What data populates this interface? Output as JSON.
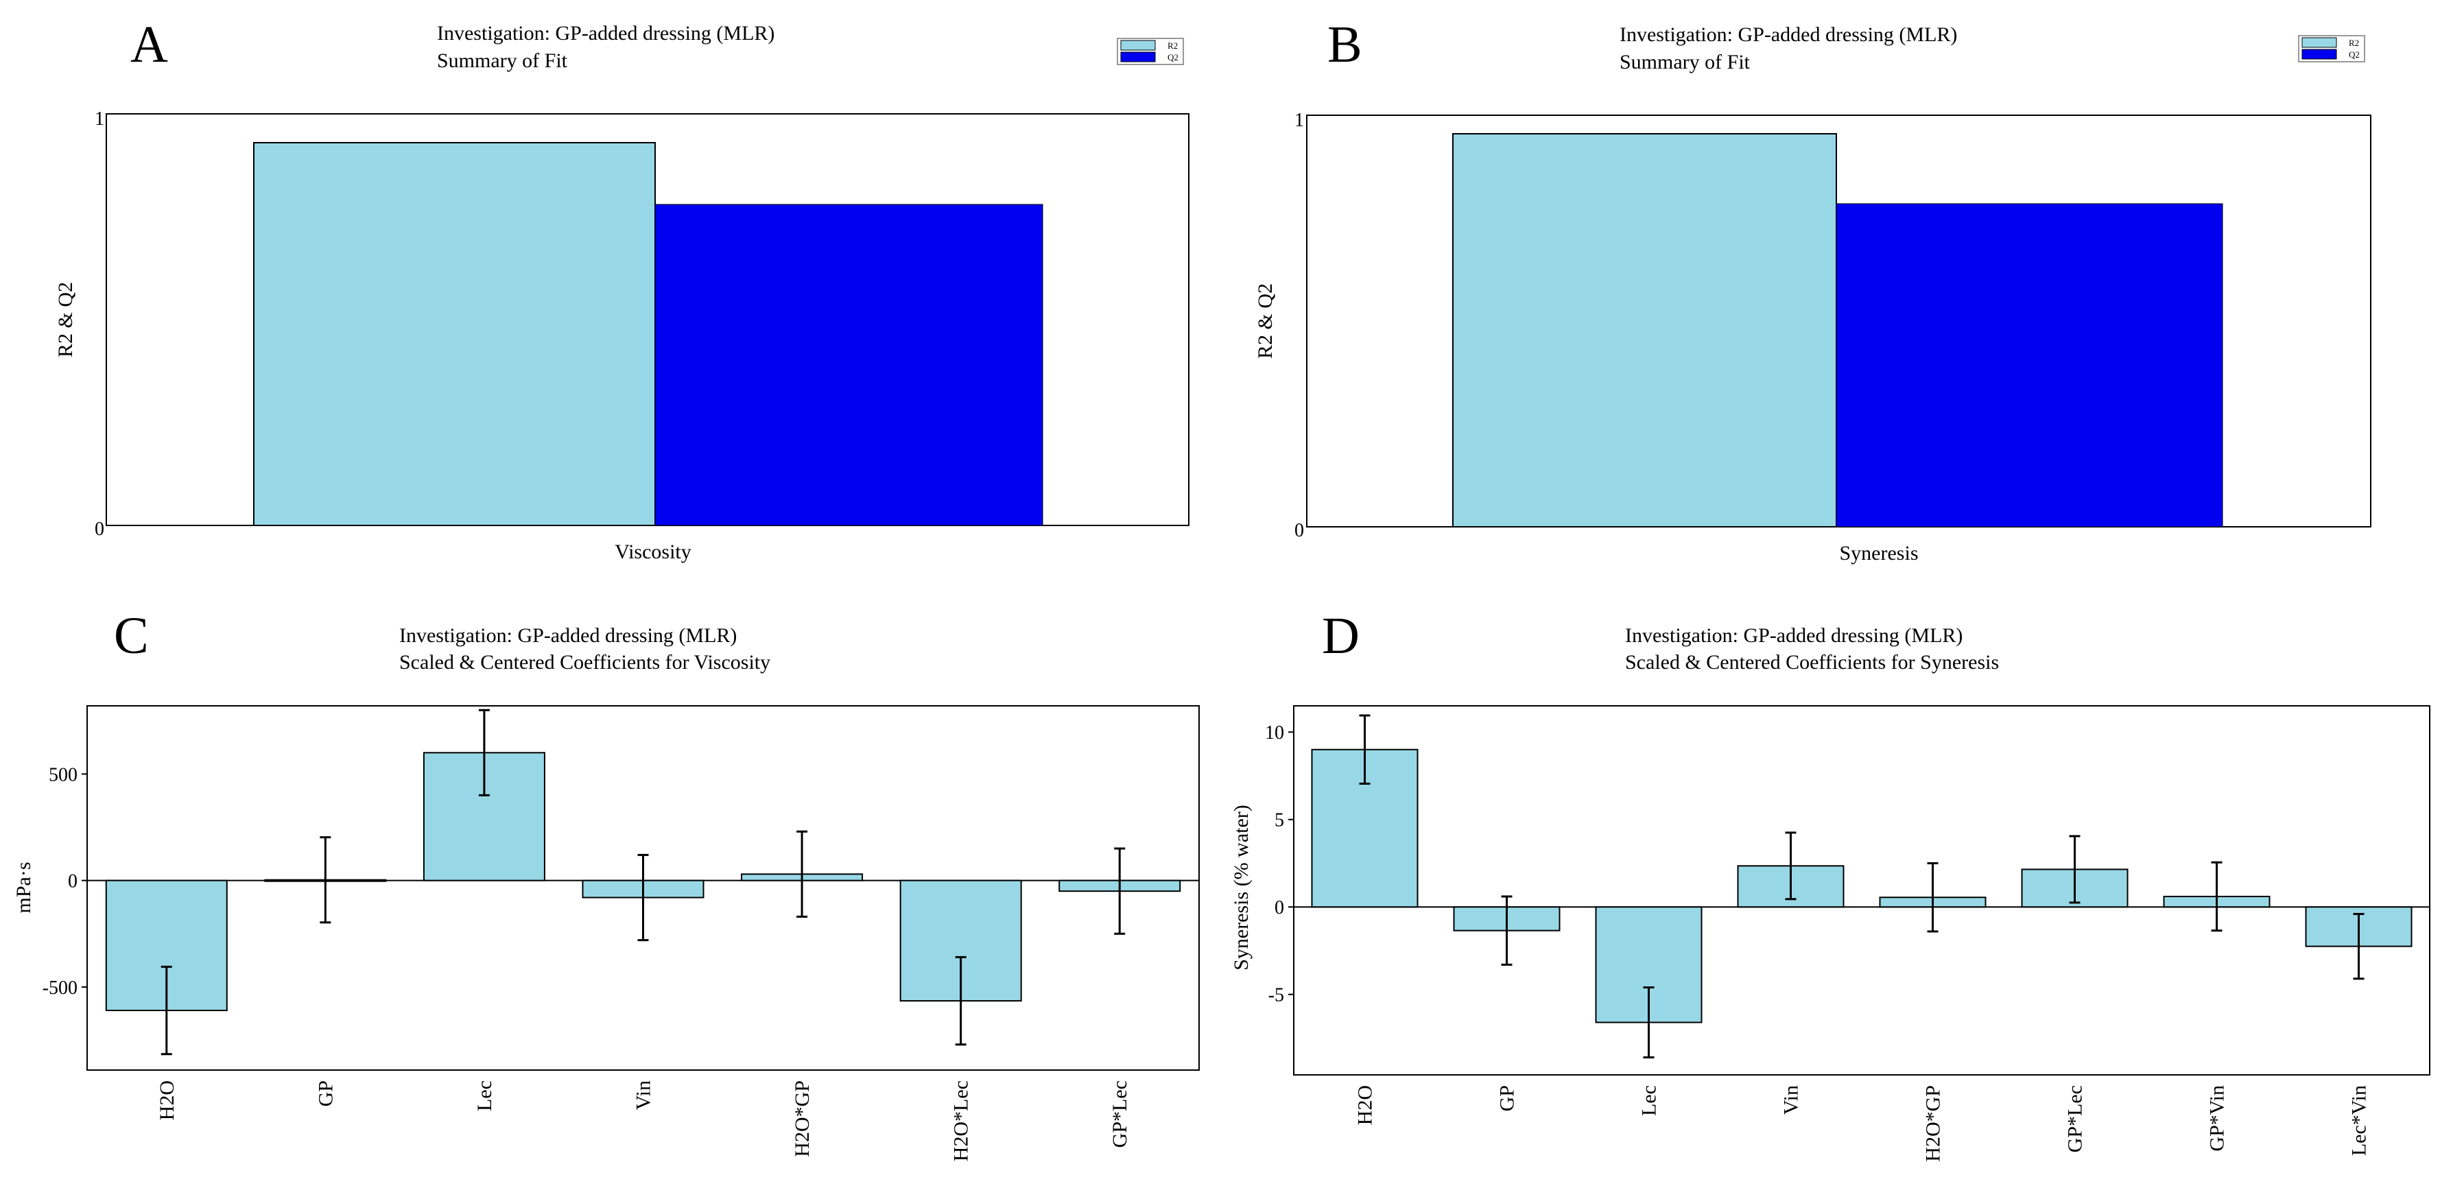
{
  "colors": {
    "r2": "#98d8e6",
    "q2": "#0000f0",
    "coef": "#98d8e6",
    "outline": "#000000"
  },
  "panels": [
    {
      "letter": "A",
      "title_line1": "Investigation: GP-added dressing (MLR)",
      "title_line2": "Summary of Fit"
    },
    {
      "letter": "B",
      "title_line1": "Investigation: GP-added dressing (MLR)",
      "title_line2": "Summary of Fit"
    },
    {
      "letter": "C",
      "title_line1": "Investigation: GP-added dressing (MLR)",
      "title_line2": "Scaled & Centered Coefficients for Viscosity"
    },
    {
      "letter": "D",
      "title_line1": "Investigation: GP-added dressing (MLR)",
      "title_line2": "Scaled & Centered Coefficients for Syneresis"
    }
  ],
  "chart_data": [
    {
      "type": "bar",
      "panel": "A",
      "title": "Summary of Fit",
      "xlabel": "Viscosity",
      "ylabel": "R2 & Q2",
      "ylim": [
        0,
        1
      ],
      "yticks": [
        0,
        1
      ],
      "categories": [
        "Viscosity"
      ],
      "series": [
        {
          "name": "R2",
          "values": [
            0.93
          ]
        },
        {
          "name": "Q2",
          "values": [
            0.78
          ]
        }
      ],
      "legend": [
        "R2",
        "Q2"
      ],
      "legend_position": "top-right"
    },
    {
      "type": "bar",
      "panel": "B",
      "title": "Summary of Fit",
      "xlabel": "Syneresis",
      "ylabel": "R2 & Q2",
      "ylim": [
        0,
        1
      ],
      "yticks": [
        0,
        1
      ],
      "categories": [
        "Syneresis"
      ],
      "series": [
        {
          "name": "R2",
          "values": [
            0.955
          ]
        },
        {
          "name": "Q2",
          "values": [
            0.785
          ]
        }
      ],
      "legend": [
        "R2",
        "Q2"
      ],
      "legend_position": "top-right"
    },
    {
      "type": "bar",
      "panel": "C",
      "title": "Scaled & Centered Coefficients for Viscosity",
      "xlabel": "",
      "ylabel": "mPa·s",
      "ylim": [
        -890,
        820
      ],
      "yticks": [
        -500,
        0,
        500
      ],
      "categories": [
        "H2O",
        "GP",
        "Lec",
        "Vin",
        "H2O*GP",
        "H2O*Lec",
        "GP*Lec"
      ],
      "values": [
        -610,
        3,
        600,
        -80,
        30,
        -565,
        -50
      ],
      "errors": [
        205,
        200,
        200,
        200,
        200,
        205,
        200
      ]
    },
    {
      "type": "bar",
      "panel": "D",
      "title": "Scaled & Centered Coefficients for Syneresis",
      "xlabel": "",
      "ylabel": "Syneresis (% water)",
      "ylim": [
        -9.6,
        11.5
      ],
      "yticks": [
        -5,
        0,
        5,
        10
      ],
      "categories": [
        "H2O",
        "GP",
        "Lec",
        "Vin",
        "H2O*GP",
        "GP*Lec",
        "GP*Vin",
        "Lec*Vin"
      ],
      "values": [
        9.0,
        -1.35,
        -6.6,
        2.35,
        0.55,
        2.15,
        0.6,
        -2.25
      ],
      "errors": [
        1.95,
        1.95,
        2.0,
        1.9,
        1.95,
        1.9,
        1.95,
        1.85
      ]
    }
  ]
}
